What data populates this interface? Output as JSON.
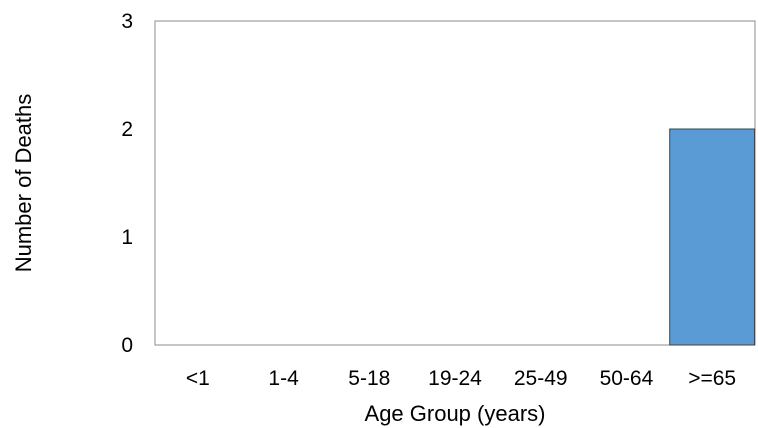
{
  "chart_data": {
    "type": "bar",
    "title": "",
    "xlabel": "Age Group (years)",
    "ylabel": "Number of Deaths",
    "categories": [
      "<1",
      "1-4",
      "5-18",
      "19-24",
      "25-49",
      "50-64",
      ">=65"
    ],
    "values": [
      0,
      0,
      0,
      0,
      0,
      0,
      2
    ],
    "ylim": [
      0,
      3
    ],
    "yticks": [
      "0",
      "1",
      "2",
      "3"
    ],
    "grid": false,
    "legend": "none",
    "bar_color": "#5b9bd5",
    "bar_border_color": "#404040"
  }
}
